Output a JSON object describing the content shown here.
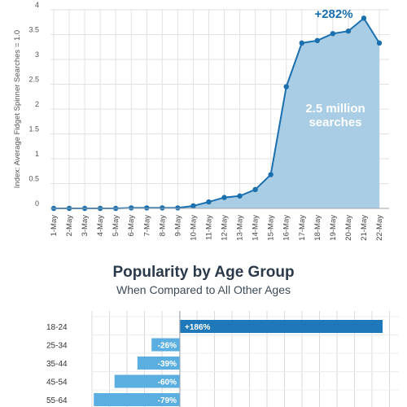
{
  "chart_data": [
    {
      "type": "area",
      "ylabel": "Index: Average Fidget Spinner Searches = 1.0",
      "ylim": [
        0,
        4
      ],
      "yticks": [
        "0",
        "0.5",
        "1",
        "1.5",
        "2",
        "2.5",
        "3",
        "3.5",
        "4"
      ],
      "x": [
        "1-May",
        "2-May",
        "3-May",
        "4-May",
        "5-May",
        "6-May",
        "7-May",
        "8-May",
        "9-May",
        "10-May",
        "11-May",
        "12-May",
        "13-May",
        "14-May",
        "15-May",
        "16-May",
        "17-May",
        "18-May",
        "19-May",
        "20-May",
        "21-May",
        "22-May"
      ],
      "values": [
        0.0,
        0.0,
        0.0,
        0.0,
        0.0,
        0.01,
        0.01,
        0.01,
        0.01,
        0.05,
        0.13,
        0.22,
        0.25,
        0.38,
        0.68,
        2.45,
        3.33,
        3.38,
        3.52,
        3.57,
        3.83,
        3.33
      ],
      "annotations": {
        "peak_change": "+282%",
        "volume_line1": "2.5 million",
        "volume_line2": "searches"
      },
      "colors": {
        "fill": "#a8cde5",
        "line": "#1a6fae",
        "point": "#1a6fae",
        "grid": "#e2e2e2"
      }
    },
    {
      "type": "bar",
      "title": "Popularity by Age Group",
      "subtitle": "When Compared to All Other Ages",
      "categories": [
        "18-24",
        "25-34",
        "35-44",
        "45-54",
        "55-64"
      ],
      "values": [
        186,
        -26,
        -39,
        -60,
        -79
      ],
      "labels": [
        "+186%",
        "-26%",
        "-39%",
        "-60%",
        "-79%"
      ],
      "colors": {
        "positive": "#1f78b9",
        "negative": "#5aaee0",
        "grid": "#d9d9d9"
      }
    }
  ]
}
